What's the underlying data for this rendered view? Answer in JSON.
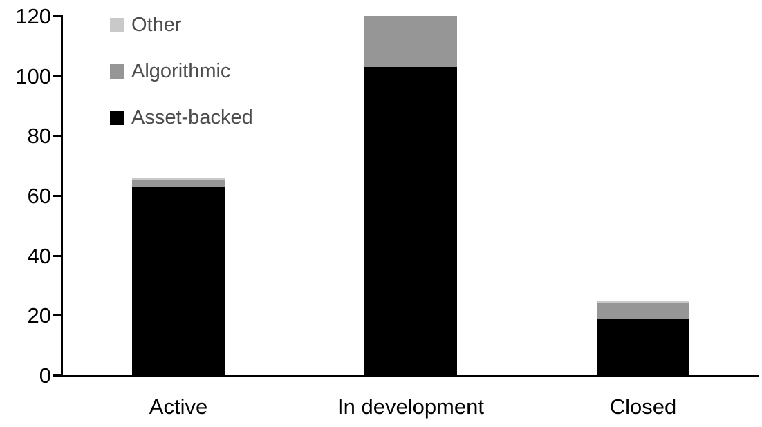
{
  "chart_data": {
    "type": "bar",
    "stacked": true,
    "title": "",
    "categories": [
      "Active",
      "In development",
      "Closed"
    ],
    "series": [
      {
        "name": "Asset-backed",
        "color": "#000000",
        "values": [
          63,
          103,
          19
        ]
      },
      {
        "name": "Algorithmic",
        "color": "#969696",
        "values": [
          2,
          17,
          5
        ]
      },
      {
        "name": "Other",
        "color": "#c9c9c9",
        "values": [
          1,
          0,
          1
        ]
      }
    ],
    "totals": [
      66,
      120,
      25
    ],
    "xlabel": "",
    "ylabel": "",
    "ylim": [
      0,
      120
    ],
    "yticks": [
      0,
      20,
      40,
      60,
      80,
      100,
      120
    ],
    "grid": false,
    "legend": {
      "position": "upper-left",
      "entries_top_to_bottom": [
        "Other",
        "Algorithmic",
        "Asset-backed"
      ],
      "text_color": "#4d4d4d"
    },
    "colors": {
      "axis": "#000000",
      "tick_label": "#000000",
      "category_label": "#000000",
      "background": "#ffffff"
    }
  }
}
